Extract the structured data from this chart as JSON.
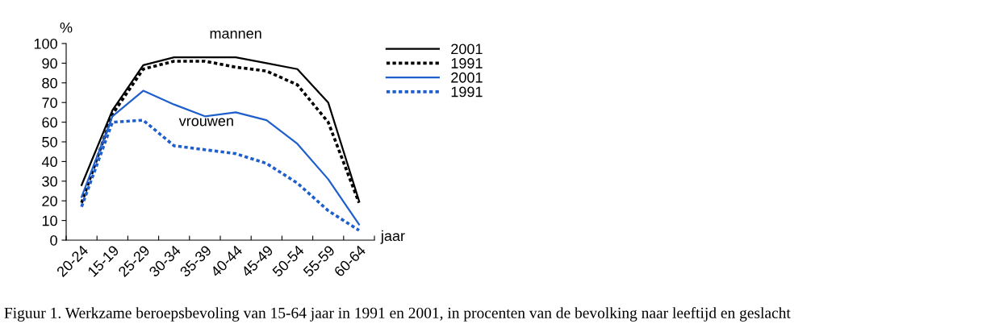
{
  "chart_data": {
    "type": "line",
    "ylabel": "%",
    "xlabel": "jaar",
    "categories": [
      "20-24",
      "15-19",
      "25-29",
      "30-34",
      "35-39",
      "40-44",
      "45-49",
      "50-54",
      "55-59",
      "60-64"
    ],
    "series": [
      {
        "name": "2001",
        "color": "#000000",
        "line_style": "solid",
        "values": [
          28,
          66,
          89,
          93,
          93,
          93,
          90,
          87,
          70,
          20
        ]
      },
      {
        "name": "1991",
        "color": "#000000",
        "line_style": "dotted",
        "values": [
          19,
          64,
          87,
          91,
          91,
          88,
          86,
          79,
          60,
          19
        ]
      },
      {
        "name": "2001",
        "color": "#1f5fcc",
        "line_style": "solid",
        "values": [
          22,
          63,
          76,
          69,
          63,
          65,
          61,
          49,
          31,
          8
        ]
      },
      {
        "name": "1991",
        "color": "#1f5fcc",
        "line_style": "dotted",
        "values": [
          17,
          60,
          61,
          48,
          46,
          44,
          39,
          29,
          15,
          5
        ]
      }
    ],
    "ylim": [
      0,
      100
    ],
    "yticks": [
      0,
      10,
      20,
      30,
      40,
      50,
      60,
      70,
      80,
      90,
      100
    ],
    "grid": false,
    "legend": "top right",
    "marker": "none",
    "annotations": [
      "mannen",
      "vrouwen",
      "Figuur 1. Werkzame beroepsbevoling van 15-64 jaar in 1991 en 2001, in procenten van de bevolking naar leeftijd en geslacht"
    ]
  }
}
